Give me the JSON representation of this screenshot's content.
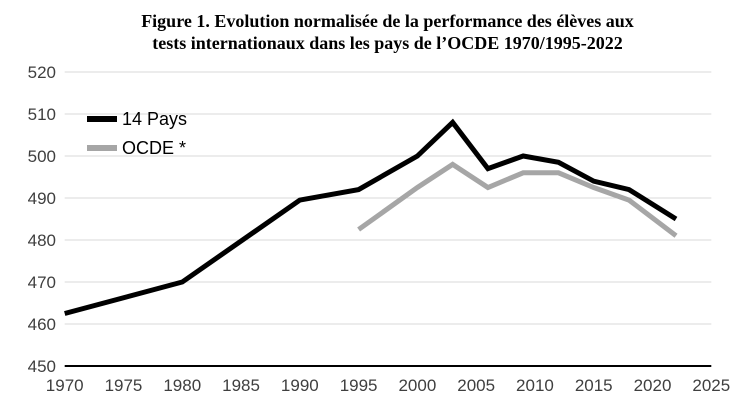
{
  "title": {
    "line1": "Figure 1. Evolution normalisée de la performance des élèves aux",
    "line2": "tests internationaux dans les pays de l’OCDE 1970/1995-2022"
  },
  "colors": {
    "series_14_pays": "#000000",
    "series_ocde": "#a6a6a6",
    "gridline": "#d9d9d9",
    "axis_line": "#000000",
    "tick_label": "#3f3f3f",
    "background": "#ffffff"
  },
  "chart_data": {
    "type": "line",
    "title": "Figure 1. Evolution normalisée de la performance des élèves aux tests internationaux dans les pays de l’OCDE 1970/1995-2022",
    "xlabel": "",
    "ylabel": "",
    "xlim": [
      1970,
      2025
    ],
    "ylim": [
      450,
      520
    ],
    "x_ticks": [
      1970,
      1975,
      1980,
      1985,
      1990,
      1995,
      2000,
      2005,
      2010,
      2015,
      2020,
      2025
    ],
    "y_ticks": [
      450,
      460,
      470,
      480,
      490,
      500,
      510,
      520
    ],
    "grid": "horizontal-only",
    "legend_position": "top-left-inside",
    "series": [
      {
        "name": "14 Pays",
        "color": "#000000",
        "x": [
          1970,
          1980,
          1990,
          1995,
          2000,
          2003,
          2006,
          2009,
          2012,
          2015,
          2018,
          2022
        ],
        "values": [
          462.5,
          470,
          489.5,
          492,
          500,
          508,
          497,
          500,
          498.5,
          494,
          492,
          485
        ]
      },
      {
        "name": "OCDE *",
        "color": "#a6a6a6",
        "x": [
          1995,
          2000,
          2003,
          2006,
          2009,
          2012,
          2015,
          2018,
          2022
        ],
        "values": [
          482.5,
          492.5,
          498,
          492.5,
          496,
          496,
          492.5,
          489.5,
          481
        ]
      }
    ]
  }
}
